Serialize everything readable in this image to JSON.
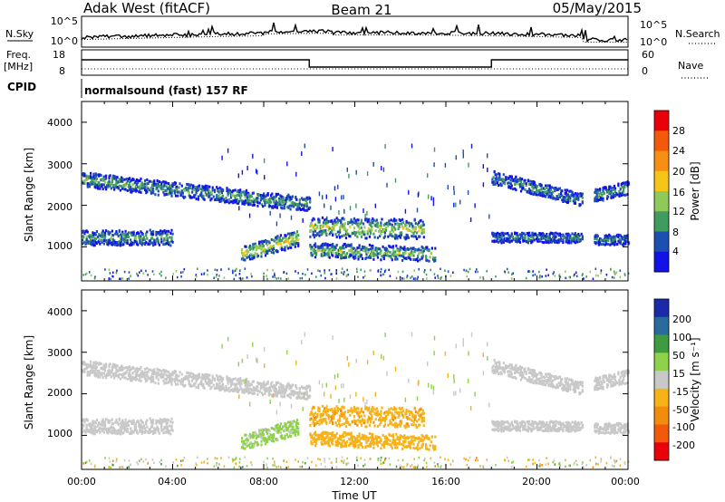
{
  "header": {
    "station": "Adak West (fitACF)",
    "beam": "Beam 21",
    "date": "05/May/2015"
  },
  "panels": {
    "nsky": {
      "label": "N.Sky",
      "right_label": "N.Search",
      "left_ticks": [
        "10^5",
        "10^0"
      ],
      "right_ticks": [
        "10^5",
        "10^0"
      ]
    },
    "freq": {
      "label_line1": "Freq.",
      "label_line2": "[MHz]",
      "left_ticks": [
        "18",
        "8"
      ],
      "right_ticks": [
        "60",
        "0"
      ],
      "right_label": "Nave",
      "cpid_label": "CPID",
      "cpid_text": "normalsound (fast) 157 RF"
    }
  },
  "colorbars": {
    "power": {
      "label": "Power [dB]",
      "ticks": [
        "28",
        "24",
        "20",
        "16",
        "12",
        "8",
        "4"
      ],
      "colors": [
        "#e8000b",
        "#f25a0a",
        "#f78f12",
        "#f5c518",
        "#8fc95a",
        "#3f9b5e",
        "#1c4fb0",
        "#1212e8"
      ]
    },
    "velocity": {
      "label": "Velocity [m s⁻¹]",
      "ticks": [
        "200",
        "100",
        "50",
        "15",
        "-15",
        "-50",
        "-100",
        "-200"
      ],
      "colors": [
        "#1a2aa8",
        "#2a6b9e",
        "#3f9b3f",
        "#8ed14a",
        "#c8c8c8",
        "#f7b218",
        "#f28c0a",
        "#f25a0a",
        "#e8000b"
      ]
    }
  },
  "chart_data": [
    {
      "type": "heatmap",
      "title": "Power",
      "xlabel": "",
      "ylabel": "Slant Range [km]",
      "x_range": [
        "00:00",
        "24:00"
      ],
      "ylim": [
        180,
        4500
      ],
      "y_ticks": [
        "4000",
        "3000",
        "2000",
        "1000"
      ],
      "colorbar_range_dB": [
        0,
        30
      ],
      "features": [
        {
          "from_h": 0.0,
          "to_h": 10.0,
          "range_start_km": 2650,
          "range_end_km": 2050,
          "thickness_km": 220,
          "value": 9
        },
        {
          "from_h": 0.0,
          "to_h": 4.0,
          "range_start_km": 1250,
          "range_end_km": 1250,
          "thickness_km": 230,
          "value": 9
        },
        {
          "from_h": 7.0,
          "to_h": 9.5,
          "range_start_km": 850,
          "range_end_km": 1250,
          "thickness_km": 250,
          "value": 14
        },
        {
          "from_h": 10.0,
          "to_h": 15.0,
          "range_start_km": 1500,
          "range_end_km": 1450,
          "thickness_km": 300,
          "value": 13
        },
        {
          "from_h": 10.0,
          "to_h": 15.5,
          "range_start_km": 950,
          "range_end_km": 850,
          "thickness_km": 220,
          "value": 11
        },
        {
          "from_h": 18.0,
          "to_h": 22.0,
          "range_start_km": 2700,
          "range_end_km": 2150,
          "thickness_km": 200,
          "value": 8
        },
        {
          "from_h": 18.0,
          "to_h": 22.0,
          "range_start_km": 1250,
          "range_end_km": 1250,
          "thickness_km": 150,
          "value": 7
        },
        {
          "from_h": 22.5,
          "to_h": 24.0,
          "range_start_km": 2250,
          "range_end_km": 2450,
          "thickness_km": 200,
          "value": 8
        },
        {
          "from_h": 22.5,
          "to_h": 24.0,
          "range_start_km": 1200,
          "range_end_km": 1200,
          "thickness_km": 150,
          "value": 7
        }
      ]
    },
    {
      "type": "heatmap",
      "title": "Velocity",
      "xlabel": "Time UT",
      "ylabel": "Slant Range [km]",
      "x_range": [
        "00:00",
        "24:00"
      ],
      "x_ticks": [
        "00:00",
        "04:00",
        "08:00",
        "12:00",
        "16:00",
        "20:00",
        "00:00"
      ],
      "ylim": [
        180,
        4500
      ],
      "y_ticks": [
        "4000",
        "3000",
        "2000",
        "1000"
      ],
      "features": [
        {
          "from_h": 0.0,
          "to_h": 10.0,
          "range_start_km": 2650,
          "range_end_km": 2050,
          "thickness_km": 220,
          "value": 0
        },
        {
          "from_h": 0.0,
          "to_h": 4.0,
          "range_start_km": 1250,
          "range_end_km": 1250,
          "thickness_km": 230,
          "value": 0
        },
        {
          "from_h": 7.0,
          "to_h": 9.5,
          "range_start_km": 850,
          "range_end_km": 1250,
          "thickness_km": 250,
          "value": 25
        },
        {
          "from_h": 10.0,
          "to_h": 15.0,
          "range_start_km": 1500,
          "range_end_km": 1450,
          "thickness_km": 300,
          "value": -40
        },
        {
          "from_h": 10.0,
          "to_h": 15.5,
          "range_start_km": 950,
          "range_end_km": 850,
          "thickness_km": 220,
          "value": -30
        },
        {
          "from_h": 18.0,
          "to_h": 22.0,
          "range_start_km": 2700,
          "range_end_km": 2150,
          "thickness_km": 200,
          "value": 0
        },
        {
          "from_h": 18.0,
          "to_h": 22.0,
          "range_start_km": 1250,
          "range_end_km": 1250,
          "thickness_km": 150,
          "value": 0
        },
        {
          "from_h": 22.5,
          "to_h": 24.0,
          "range_start_km": 2250,
          "range_end_km": 2450,
          "thickness_km": 200,
          "value": 0
        },
        {
          "from_h": 22.5,
          "to_h": 24.0,
          "range_start_km": 1200,
          "range_end_km": 1200,
          "thickness_km": 150,
          "value": 0
        }
      ]
    }
  ]
}
